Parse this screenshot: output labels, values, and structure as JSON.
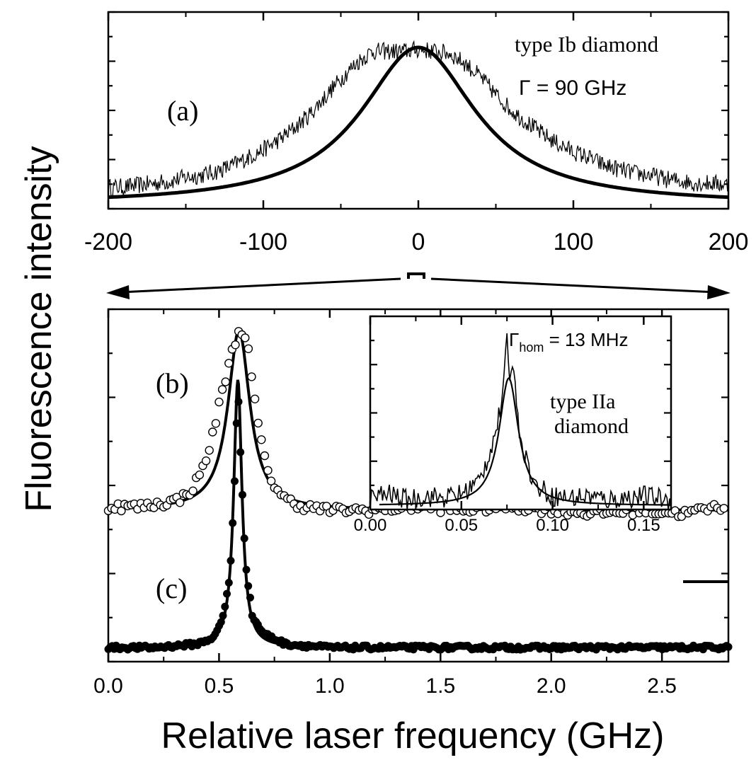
{
  "figure": {
    "ylabel": "Fluorescence intensity",
    "xlabel": "Relative laser frequency (GHz)"
  },
  "colors": {
    "ink": "#000000",
    "background": "#ffffff"
  },
  "chart_data": [
    {
      "panel_label": "(a)",
      "type": "line",
      "annotations": [
        "type Ib diamond",
        "Γ =  90 GHz"
      ],
      "xlim": [
        -200,
        200
      ],
      "xticks": [
        -200,
        -100,
        0,
        100,
        200
      ],
      "xtick_labels": [
        "-200",
        "-100",
        "0",
        "100",
        "200"
      ],
      "ylim": [
        0,
        1
      ],
      "grid": false,
      "fit": {
        "shape": "lorentzian",
        "center": 0,
        "fwhm": 90,
        "baseline": 0.02,
        "peak": 0.82
      },
      "series": [
        {
          "style": "noisy-line",
          "x": [
            -200,
            -190,
            -180,
            -170,
            -160,
            -150,
            -140,
            -130,
            -120,
            -110,
            -100,
            -90,
            -80,
            -70,
            -60,
            -50,
            -40,
            -30,
            -20,
            -10,
            0,
            10,
            20,
            30,
            40,
            50,
            60,
            70,
            80,
            90,
            100,
            110,
            120,
            130,
            140,
            150,
            160,
            170,
            180,
            190,
            200
          ],
          "y": [
            0.11,
            0.11,
            0.12,
            0.13,
            0.14,
            0.16,
            0.17,
            0.19,
            0.22,
            0.26,
            0.3,
            0.35,
            0.41,
            0.48,
            0.57,
            0.66,
            0.74,
            0.8,
            0.8,
            0.8,
            0.81,
            0.8,
            0.79,
            0.74,
            0.67,
            0.58,
            0.5,
            0.44,
            0.38,
            0.33,
            0.29,
            0.26,
            0.22,
            0.2,
            0.18,
            0.17,
            0.15,
            0.14,
            0.13,
            0.13,
            0.12
          ]
        }
      ]
    },
    {
      "panel_labels": [
        "(b)",
        "(c)"
      ],
      "type": "scatter",
      "xlim": [
        0,
        2.8
      ],
      "xticks": [
        0,
        0.5,
        1.0,
        1.5,
        2.0,
        2.5
      ],
      "xtick_labels": [
        "0.0",
        "0.5",
        "1.0",
        "1.5",
        "2.0",
        "2.5"
      ],
      "ylim": [
        0,
        1
      ],
      "grid": false,
      "series": [
        {
          "name": "(b)",
          "marker": "open-circle",
          "fit": {
            "shape": "lorentzian",
            "center": 0.59,
            "fwhm": 0.12,
            "baseline": 0.43,
            "peak": 0.94
          },
          "x": [
            0.05,
            0.15,
            0.25,
            0.32,
            0.38,
            0.42,
            0.46,
            0.49,
            0.52,
            0.55,
            0.57,
            0.59,
            0.61,
            0.63,
            0.65,
            0.68,
            0.71,
            0.75,
            0.8,
            0.88,
            1.0,
            1.2,
            1.4,
            1.6,
            1.8,
            2.0,
            2.2,
            2.4,
            2.6,
            2.75
          ],
          "y": [
            0.44,
            0.44,
            0.45,
            0.46,
            0.49,
            0.54,
            0.61,
            0.7,
            0.78,
            0.86,
            0.9,
            0.94,
            0.94,
            0.89,
            0.79,
            0.66,
            0.56,
            0.5,
            0.46,
            0.44,
            0.43,
            0.43,
            0.44,
            0.43,
            0.44,
            0.43,
            0.42,
            0.43,
            0.42,
            0.44
          ]
        },
        {
          "name": "(c)",
          "marker": "filled-circle",
          "fit": {
            "shape": "lorentzian",
            "center": 0.585,
            "fwhm": 0.045,
            "baseline": 0.04,
            "peak": 0.8
          },
          "x": [
            0.0,
            0.2,
            0.4,
            0.48,
            0.52,
            0.55,
            0.57,
            0.585,
            0.6,
            0.62,
            0.65,
            0.7,
            0.8,
            1.0,
            1.4,
            1.8,
            2.2,
            2.6,
            2.8
          ],
          "y": [
            0.04,
            0.04,
            0.05,
            0.07,
            0.13,
            0.25,
            0.5,
            0.78,
            0.55,
            0.28,
            0.13,
            0.08,
            0.05,
            0.04,
            0.04,
            0.04,
            0.04,
            0.04,
            0.04
          ]
        }
      ],
      "scale_bar_visible": true
    },
    {
      "type": "line",
      "inset": true,
      "annotations": [
        "Γ",
        "hom",
        " = 13 MHz",
        "type IIa",
        "diamond"
      ],
      "xlim": [
        0,
        0.165
      ],
      "xticks": [
        0,
        0.05,
        0.1,
        0.15
      ],
      "xtick_labels": [
        "0.00",
        "0.05",
        "0.10",
        "0.15"
      ],
      "ylim": [
        0,
        1
      ],
      "grid": false,
      "fit": {
        "shape": "lorentzian",
        "center": 0.076,
        "fwhm": 0.013,
        "baseline": 0.02,
        "peak": 0.68
      },
      "series": [
        {
          "style": "noisy-line",
          "x": [
            0.0,
            0.01,
            0.02,
            0.03,
            0.04,
            0.05,
            0.06,
            0.065,
            0.07,
            0.073,
            0.075,
            0.077,
            0.079,
            0.081,
            0.085,
            0.09,
            0.1,
            0.11,
            0.12,
            0.13,
            0.14,
            0.15,
            0.165
          ],
          "y": [
            0.06,
            0.08,
            0.05,
            0.07,
            0.06,
            0.08,
            0.15,
            0.28,
            0.45,
            0.6,
            0.88,
            0.66,
            0.78,
            0.45,
            0.28,
            0.13,
            0.07,
            0.06,
            0.07,
            0.05,
            0.06,
            0.07,
            0.05
          ]
        }
      ]
    }
  ]
}
